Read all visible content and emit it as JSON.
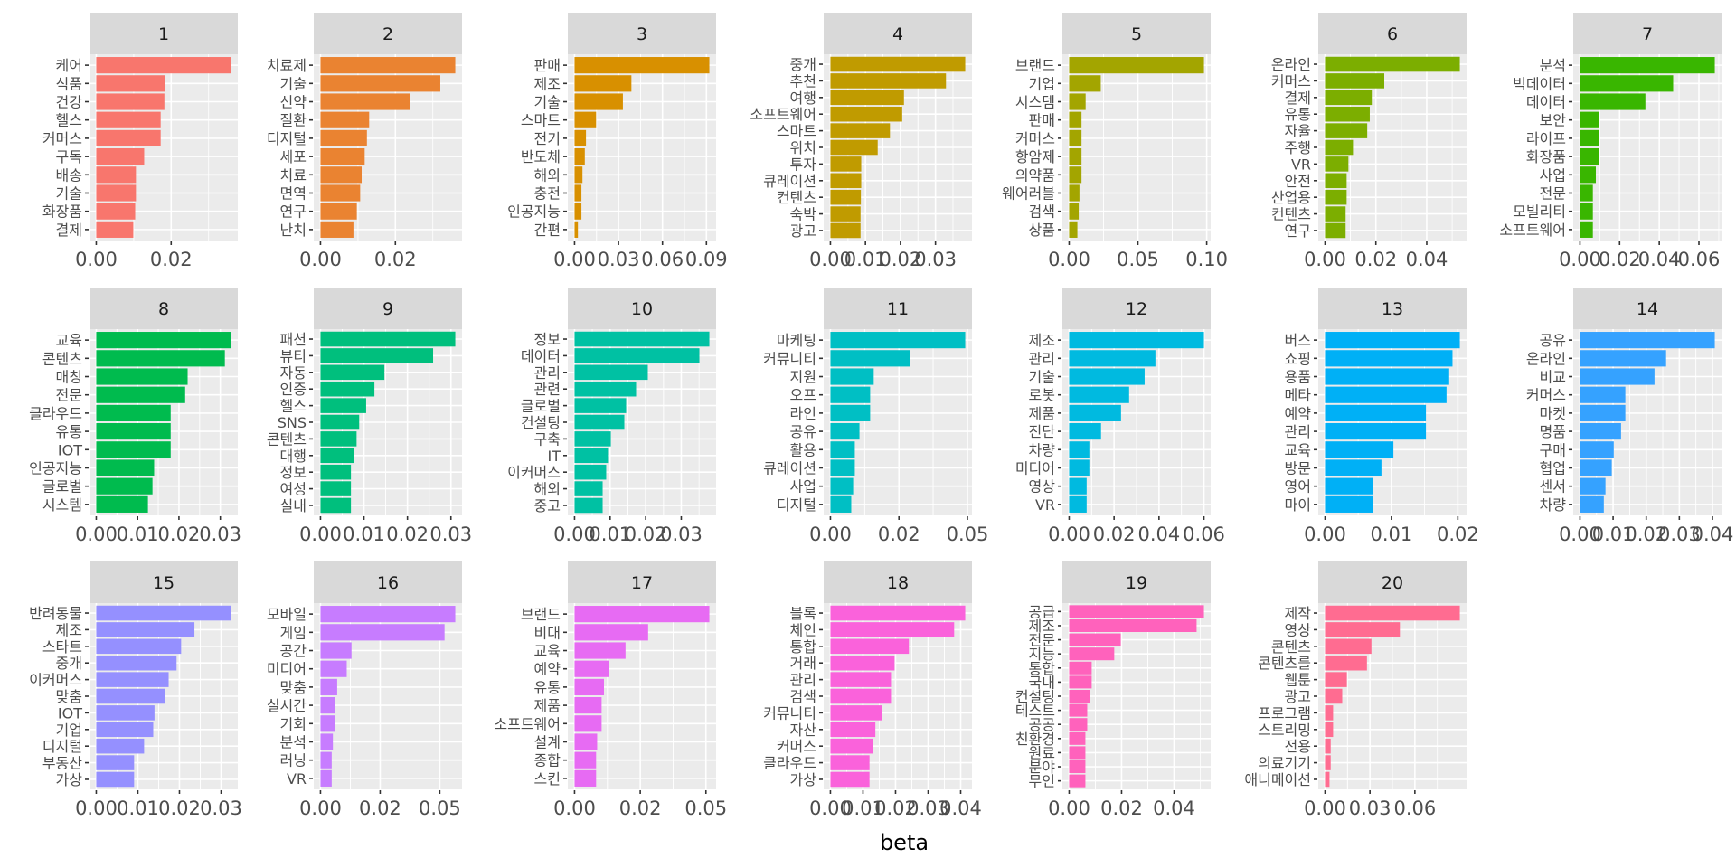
{
  "chart_data": {
    "type": "bar",
    "orientation": "horizontal",
    "facet": "wrap",
    "xlabel": "beta",
    "ylabel": "",
    "grid": true,
    "legend": "none",
    "panels": [
      {
        "title": "1",
        "color": "#F8766D",
        "terms": [
          "케어",
          "식품",
          "건강",
          "헬스",
          "커머스",
          "구독",
          "배송",
          "기술",
          "화장품",
          "결제"
        ],
        "beta": [
          0.036,
          0.0184,
          0.0182,
          0.0172,
          0.0172,
          0.0128,
          0.0106,
          0.0106,
          0.0104,
          0.0099
        ],
        "ticks": [
          0,
          0.02
        ],
        "tick_labels": [
          "0.00",
          "0.02"
        ]
      },
      {
        "title": "2",
        "color": "#EA8331",
        "terms": [
          "치료제",
          "기술",
          "신약",
          "질환",
          "디지털",
          "세포",
          "치료",
          "면역",
          "연구",
          "난치"
        ],
        "beta": [
          0.036,
          0.032,
          0.024,
          0.013,
          0.0124,
          0.0118,
          0.011,
          0.0106,
          0.0097,
          0.0088
        ],
        "ticks": [
          0,
          0.02
        ],
        "tick_labels": [
          "0.00",
          "0.02"
        ]
      },
      {
        "title": "3",
        "color": "#D89000",
        "terms": [
          "판매",
          "제조",
          "기술",
          "스마트",
          "전기",
          "반도체",
          "해외",
          "충전",
          "인공지능",
          "간편"
        ],
        "beta": [
          0.092,
          0.0388,
          0.033,
          0.0147,
          0.0078,
          0.007,
          0.0054,
          0.0047,
          0.0047,
          0.0023
        ],
        "ticks": [
          0,
          0.03,
          0.06,
          0.09
        ],
        "tick_labels": [
          "0.00",
          "0.03",
          "0.06",
          "0.09"
        ]
      },
      {
        "title": "4",
        "color": "#C09B00",
        "terms": [
          "중개",
          "추천",
          "여행",
          "소프트웨어",
          "스마트",
          "위치",
          "투자",
          "큐레이션",
          "컨텐츠",
          "숙박",
          "광고"
        ],
        "beta": [
          0.0385,
          0.033,
          0.021,
          0.0205,
          0.017,
          0.0135,
          0.0088,
          0.0088,
          0.0087,
          0.0086,
          0.0086
        ],
        "ticks": [
          0,
          0.01,
          0.02,
          0.03
        ],
        "tick_labels": [
          "0.00",
          "0.01",
          "0.02",
          "0.03"
        ]
      },
      {
        "title": "5",
        "color": "#A3A500",
        "terms": [
          "브랜드",
          "기업",
          "시스템",
          "판매",
          "커머스",
          "항암제",
          "의약품",
          "웨어러블",
          "검색",
          "상품"
        ],
        "beta": [
          0.098,
          0.023,
          0.012,
          0.009,
          0.009,
          0.009,
          0.009,
          0.0075,
          0.007,
          0.006
        ],
        "ticks": [
          0,
          0.05,
          0.1
        ],
        "tick_labels": [
          "0.00",
          "0.05",
          "0.10"
        ]
      },
      {
        "title": "6",
        "color": "#7CAE00",
        "terms": [
          "온라인",
          "커머스",
          "결제",
          "유통",
          "자율",
          "주행",
          "VR",
          "안전",
          "산업용",
          "컨텐츠",
          "연구"
        ],
        "beta": [
          0.053,
          0.0233,
          0.0184,
          0.0176,
          0.0166,
          0.011,
          0.0092,
          0.0085,
          0.0085,
          0.0081,
          0.0081
        ],
        "ticks": [
          0,
          0.02,
          0.04
        ],
        "tick_labels": [
          "0.00",
          "0.02",
          "0.04"
        ]
      },
      {
        "title": "7",
        "color": "#39B600",
        "terms": [
          "분석",
          "빅데이터",
          "데이터",
          "보안",
          "라이프",
          "화장품",
          "사업",
          "전문",
          "모빌리티",
          "소프트웨어"
        ],
        "beta": [
          0.068,
          0.047,
          0.033,
          0.0097,
          0.0097,
          0.0095,
          0.008,
          0.0065,
          0.0065,
          0.0065
        ],
        "ticks": [
          0,
          0.02,
          0.04,
          0.06
        ],
        "tick_labels": [
          "0.00",
          "0.02",
          "0.04",
          "0.06"
        ]
      },
      {
        "title": "8",
        "color": "#00BB4E",
        "terms": [
          "교육",
          "콘텐츠",
          "매칭",
          "전문",
          "클라우드",
          "유통",
          "IOT",
          "인공지능",
          "글로벌",
          "시스템"
        ],
        "beta": [
          0.0326,
          0.0311,
          0.0221,
          0.0215,
          0.018,
          0.018,
          0.018,
          0.014,
          0.0136,
          0.0125
        ],
        "ticks": [
          0,
          0.01,
          0.02,
          0.03
        ],
        "tick_labels": [
          "0.00",
          "0.01",
          "0.02",
          "0.03"
        ]
      },
      {
        "title": "9",
        "color": "#00BF7D",
        "terms": [
          "패션",
          "뷰티",
          "자동",
          "인증",
          "헬스",
          "SNS",
          "콘텐츠",
          "대행",
          "정보",
          "여성",
          "실내"
        ],
        "beta": [
          0.031,
          0.0259,
          0.0147,
          0.0124,
          0.0105,
          0.0089,
          0.0083,
          0.0076,
          0.007,
          0.007,
          0.007
        ],
        "ticks": [
          0,
          0.01,
          0.02,
          0.03
        ],
        "tick_labels": [
          "0.00",
          "0.01",
          "0.02",
          "0.03"
        ]
      },
      {
        "title": "10",
        "color": "#00C1A3",
        "terms": [
          "정보",
          "데이터",
          "관리",
          "관련",
          "글로벌",
          "컨설팅",
          "구축",
          "IT",
          "이커머스",
          "해외",
          "중고"
        ],
        "beta": [
          0.0379,
          0.0351,
          0.0206,
          0.0173,
          0.0145,
          0.014,
          0.0102,
          0.0094,
          0.0089,
          0.0079,
          0.0079
        ],
        "ticks": [
          0,
          0.01,
          0.02,
          0.03
        ],
        "tick_labels": [
          "0.00",
          "0.01",
          "0.02",
          "0.03"
        ]
      },
      {
        "title": "11",
        "color": "#00BFC4",
        "terms": [
          "마케팅",
          "커뮤니티",
          "지원",
          "오프",
          "라인",
          "공유",
          "활용",
          "큐레이션",
          "사업",
          "디지털"
        ],
        "beta": [
          0.0492,
          0.0289,
          0.0158,
          0.0145,
          0.0145,
          0.0106,
          0.0089,
          0.0089,
          0.0083,
          0.0076
        ],
        "ticks": [
          0,
          0.025,
          0.05
        ],
        "tick_labels": [
          "0.00",
          "0.02",
          "0.05"
        ]
      },
      {
        "title": "12",
        "color": "#00BAE0",
        "terms": [
          "제조",
          "관리",
          "기술",
          "로봇",
          "제품",
          "진단",
          "차량",
          "미디어",
          "영상",
          "VR"
        ],
        "beta": [
          0.06,
          0.0384,
          0.0336,
          0.0267,
          0.0231,
          0.0142,
          0.009,
          0.009,
          0.0078,
          0.0078
        ],
        "ticks": [
          0,
          0.02,
          0.04,
          0.06
        ],
        "tick_labels": [
          "0.00",
          "0.02",
          "0.04",
          "0.06"
        ]
      },
      {
        "title": "13",
        "color": "#00B0F6",
        "terms": [
          "버스",
          "쇼핑",
          "용품",
          "메타",
          "예약",
          "관리",
          "교육",
          "방문",
          "영어",
          "마이"
        ],
        "beta": [
          0.0203,
          0.0192,
          0.0187,
          0.0183,
          0.0152,
          0.0152,
          0.0103,
          0.0085,
          0.0072,
          0.0072
        ],
        "ticks": [
          0,
          0.01,
          0.02
        ],
        "tick_labels": [
          "0.00",
          "0.01",
          "0.02"
        ]
      },
      {
        "title": "14",
        "color": "#35A2FF",
        "terms": [
          "공유",
          "온라인",
          "비교",
          "커머스",
          "마켓",
          "명품",
          "구매",
          "협업",
          "센서",
          "차량"
        ],
        "beta": [
          0.0407,
          0.026,
          0.0225,
          0.0137,
          0.0137,
          0.0124,
          0.0102,
          0.0096,
          0.0077,
          0.0072
        ],
        "ticks": [
          0,
          0.01,
          0.02,
          0.03,
          0.04
        ],
        "tick_labels": [
          "0.00",
          "0.01",
          "0.02",
          "0.03",
          "0.04"
        ]
      },
      {
        "title": "15",
        "color": "#9590FF",
        "terms": [
          "반려동물",
          "제조",
          "스타트",
          "중개",
          "이커머스",
          "맞춤",
          "IOT",
          "기업",
          "디지털",
          "부동산",
          "가상"
        ],
        "beta": [
          0.0324,
          0.0236,
          0.0204,
          0.0193,
          0.0174,
          0.0166,
          0.014,
          0.0137,
          0.0115,
          0.0091,
          0.0091
        ],
        "ticks": [
          0,
          0.01,
          0.02,
          0.03
        ],
        "tick_labels": [
          "0.00",
          "0.01",
          "0.02",
          "0.03"
        ]
      },
      {
        "title": "16",
        "color": "#C77CFF",
        "terms": [
          "모바일",
          "게임",
          "공간",
          "미디어",
          "맞춤",
          "실시간",
          "기회",
          "분석",
          "러닝",
          "VR"
        ],
        "beta": [
          0.0565,
          0.052,
          0.013,
          0.011,
          0.007,
          0.006,
          0.006,
          0.0052,
          0.0047,
          0.0047
        ],
        "ticks": [
          0,
          0.025,
          0.05
        ],
        "tick_labels": [
          "0.00",
          "0.02",
          "0.05"
        ]
      },
      {
        "title": "17",
        "color": "#E76BF3",
        "terms": [
          "브랜드",
          "비대",
          "교육",
          "예약",
          "유통",
          "제품",
          "소프트웨어",
          "설계",
          "종합",
          "스킨"
        ],
        "beta": [
          0.0513,
          0.028,
          0.0194,
          0.013,
          0.0112,
          0.0103,
          0.0103,
          0.0086,
          0.0082,
          0.0082
        ],
        "ticks": [
          0,
          0.025,
          0.05
        ],
        "tick_labels": [
          "0.00",
          "0.02",
          "0.05"
        ]
      },
      {
        "title": "18",
        "color": "#FA62DB",
        "terms": [
          "블록",
          "체인",
          "통합",
          "거래",
          "관리",
          "검색",
          "커뮤니티",
          "자산",
          "커머스",
          "클라우드",
          "가상"
        ],
        "beta": [
          0.0414,
          0.038,
          0.0241,
          0.0197,
          0.0186,
          0.0186,
          0.0159,
          0.0138,
          0.0131,
          0.012,
          0.012
        ],
        "ticks": [
          0,
          0.01,
          0.02,
          0.03,
          0.04
        ],
        "tick_labels": [
          "0.00",
          "0.01",
          "0.02",
          "0.03",
          "0.04"
        ]
      },
      {
        "title": "19",
        "color": "#FF62BC",
        "terms": [
          "공급",
          "제조",
          "전문",
          "지능",
          "통합",
          "국내",
          "컨설팅",
          "테스트",
          "공공",
          "친환경",
          "원료",
          "분야",
          "무인"
        ],
        "beta": [
          0.0514,
          0.0486,
          0.0197,
          0.0172,
          0.0086,
          0.0086,
          0.0079,
          0.0069,
          0.0069,
          0.0062,
          0.0062,
          0.0062,
          0.0062
        ],
        "ticks": [
          0,
          0.02,
          0.04
        ],
        "tick_labels": [
          "0.00",
          "0.02",
          "0.04"
        ]
      },
      {
        "title": "20",
        "color": "#FF6C91",
        "terms": [
          "제작",
          "영상",
          "콘텐츠",
          "콘텐츠를",
          "웹툰",
          "광고",
          "프로그램",
          "스트리밍",
          "전용",
          "의료기기",
          "애니메이션"
        ],
        "beta": [
          0.09,
          0.05,
          0.031,
          0.028,
          0.0146,
          0.0115,
          0.0054,
          0.0054,
          0.0038,
          0.0038,
          0.003
        ],
        "ticks": [
          0,
          0.03,
          0.06
        ],
        "tick_labels": [
          "0.00",
          "0.03",
          "0.06"
        ]
      }
    ]
  }
}
